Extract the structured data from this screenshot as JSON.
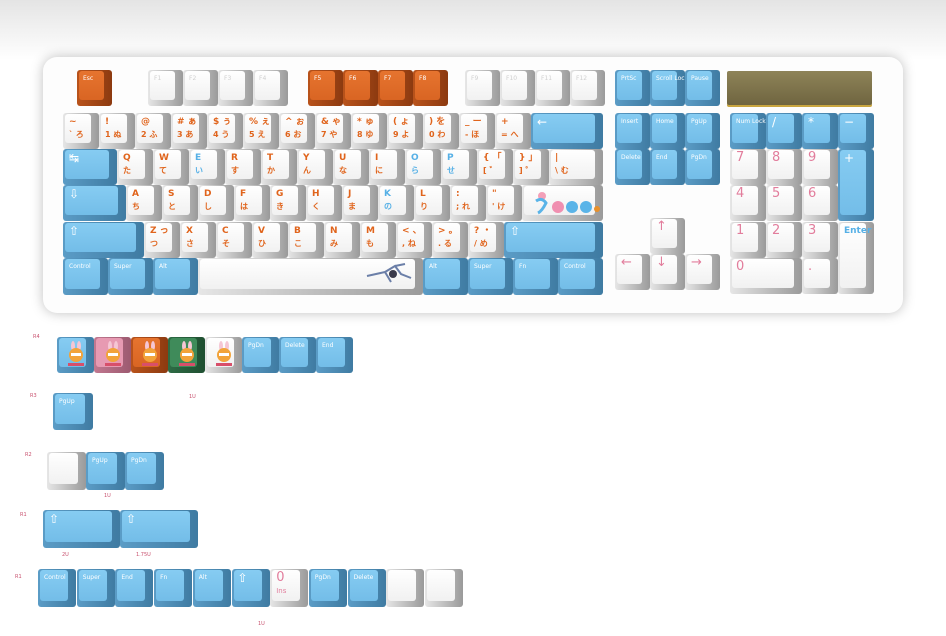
{
  "colors": {
    "blue": "#7cc4ec",
    "orange": "#dd6a28",
    "white": "#f5f5f5",
    "pink": "#e79ab2",
    "green": "#3f8b5a",
    "legend_orange": "#e0641c",
    "legend_blue": "#56b0e6",
    "legend_pink": "#e27d9c",
    "led_panel": "#857a4f"
  },
  "keyboard": {
    "rows": [
      {
        "keys": [
          {
            "t": "Esc",
            "c": "orange",
            "lc": "white"
          },
          {
            "t": "F1",
            "c": "white",
            "lc": "white2"
          },
          {
            "t": "F2",
            "c": "white",
            "lc": "white2"
          },
          {
            "t": "F3",
            "c": "white",
            "lc": "white2"
          },
          {
            "t": "F4",
            "c": "white",
            "lc": "white2"
          },
          {
            "t": "F5",
            "c": "orange",
            "lc": "white"
          },
          {
            "t": "F6",
            "c": "orange",
            "lc": "white"
          },
          {
            "t": "F7",
            "c": "orange",
            "lc": "white"
          },
          {
            "t": "F8",
            "c": "orange",
            "lc": "white"
          },
          {
            "t": "F9",
            "c": "white",
            "lc": "white2"
          },
          {
            "t": "F10",
            "c": "white",
            "lc": "white2"
          },
          {
            "t": "F11",
            "c": "white",
            "lc": "white2"
          },
          {
            "t": "F12",
            "c": "white",
            "lc": "white2"
          }
        ]
      },
      {
        "keys": [
          {
            "t": "~",
            "b": "` ろ",
            "c": "white",
            "lc": "orange"
          },
          {
            "t": "!",
            "b": "1 ぬ",
            "c": "white",
            "lc": "orange"
          },
          {
            "t": "@",
            "b": "2 ふ",
            "c": "white",
            "lc": "orange"
          },
          {
            "t": "# ぁ",
            "b": "3 あ",
            "c": "white",
            "lc": "orange"
          },
          {
            "t": "$ ぅ",
            "b": "4 う",
            "c": "white",
            "lc": "orange"
          },
          {
            "t": "% ぇ",
            "b": "5 え",
            "c": "white",
            "lc": "orange"
          },
          {
            "t": "^ ぉ",
            "b": "6 お",
            "c": "white",
            "lc": "orange"
          },
          {
            "t": "& ゃ",
            "b": "7 や",
            "c": "white",
            "lc": "orange"
          },
          {
            "t": "* ゅ",
            "b": "8 ゆ",
            "c": "white",
            "lc": "orange"
          },
          {
            "t": "( ょ",
            "b": "9 よ",
            "c": "white",
            "lc": "orange"
          },
          {
            "t": ") を",
            "b": "0 わ",
            "c": "white",
            "lc": "orange"
          },
          {
            "t": "_ ー",
            "b": "- ほ",
            "c": "white",
            "lc": "orange"
          },
          {
            "t": "+",
            "b": "= へ",
            "c": "white",
            "lc": "orange"
          },
          {
            "t": "←",
            "c": "blue",
            "lc": "white3"
          }
        ]
      },
      {
        "keys": [
          {
            "t": "↹",
            "c": "blue",
            "lc": "white3"
          },
          {
            "t": "Q",
            "b": "た",
            "c": "white",
            "lc": "orange"
          },
          {
            "t": "W",
            "b": "て",
            "c": "white",
            "lc": "orange"
          },
          {
            "t": "E",
            "b": "い",
            "c": "white",
            "lc": "blue"
          },
          {
            "t": "R",
            "b": "す",
            "c": "white",
            "lc": "orange"
          },
          {
            "t": "T",
            "b": "か",
            "c": "white",
            "lc": "orange"
          },
          {
            "t": "Y",
            "b": "ん",
            "c": "white",
            "lc": "orange"
          },
          {
            "t": "U",
            "b": "な",
            "c": "white",
            "lc": "orange"
          },
          {
            "t": "I",
            "b": "に",
            "c": "white",
            "lc": "orange"
          },
          {
            "t": "O",
            "b": "ら",
            "c": "white",
            "lc": "blue"
          },
          {
            "t": "P",
            "b": "せ",
            "c": "white",
            "lc": "blue"
          },
          {
            "t": "{ 「",
            "b": "[ ゛",
            "c": "white",
            "lc": "orange"
          },
          {
            "t": "} 」",
            "b": "] ゜",
            "c": "white",
            "lc": "orange"
          },
          {
            "t": "|",
            "b": "\\ む",
            "c": "white",
            "lc": "orange"
          }
        ]
      },
      {
        "keys": [
          {
            "t": "⇩",
            "c": "blue",
            "lc": "white3"
          },
          {
            "t": "A",
            "b": "ち",
            "c": "white",
            "lc": "orange"
          },
          {
            "t": "S",
            "b": "と",
            "c": "white",
            "lc": "orange"
          },
          {
            "t": "D",
            "b": "し",
            "c": "white",
            "lc": "orange"
          },
          {
            "t": "F",
            "b": "は",
            "c": "white",
            "lc": "orange"
          },
          {
            "t": "G",
            "b": "き",
            "c": "white",
            "lc": "orange"
          },
          {
            "t": "H",
            "b": "く",
            "c": "white",
            "lc": "orange"
          },
          {
            "t": "J",
            "b": "ま",
            "c": "white",
            "lc": "orange"
          },
          {
            "t": "K",
            "b": "の",
            "c": "white",
            "lc": "blue"
          },
          {
            "t": "L",
            "b": "り",
            "c": "white",
            "lc": "orange"
          },
          {
            "t": ":",
            "b": "; れ",
            "c": "white",
            "lc": "orange"
          },
          {
            "t": "\"",
            "b": "' け",
            "c": "white",
            "lc": "orange"
          },
          {
            "t": "",
            "c": "white",
            "lc": "orange",
            "art": "logo"
          }
        ]
      },
      {
        "keys": [
          {
            "t": "⇧",
            "c": "blue",
            "lc": "white3"
          },
          {
            "t": "Z っ",
            "b": "つ",
            "c": "white",
            "lc": "orange"
          },
          {
            "t": "X",
            "b": "さ",
            "c": "white",
            "lc": "orange"
          },
          {
            "t": "C",
            "b": "そ",
            "c": "white",
            "lc": "orange"
          },
          {
            "t": "V",
            "b": "ひ",
            "c": "white",
            "lc": "orange"
          },
          {
            "t": "B",
            "b": "こ",
            "c": "white",
            "lc": "orange"
          },
          {
            "t": "N",
            "b": "み",
            "c": "white",
            "lc": "orange"
          },
          {
            "t": "M",
            "b": "も",
            "c": "white",
            "lc": "orange"
          },
          {
            "t": "< 、",
            "b": ", ね",
            "c": "white",
            "lc": "orange"
          },
          {
            "t": "> 。",
            "b": ". る",
            "c": "white",
            "lc": "orange"
          },
          {
            "t": "? ・",
            "b": "/ め",
            "c": "white",
            "lc": "orange"
          },
          {
            "t": "⇧",
            "c": "blue",
            "lc": "white3"
          }
        ]
      },
      {
        "keys": [
          {
            "t": "Control",
            "c": "blue",
            "lc": "white"
          },
          {
            "t": "Super",
            "c": "blue",
            "lc": "white"
          },
          {
            "t": "Alt",
            "c": "blue",
            "lc": "white"
          },
          {
            "t": "",
            "c": "white",
            "lc": "orange",
            "art": "space"
          },
          {
            "t": "Alt",
            "c": "blue",
            "lc": "white"
          },
          {
            "t": "Super",
            "c": "blue",
            "lc": "white"
          },
          {
            "t": "Fn",
            "c": "blue",
            "lc": "white"
          },
          {
            "t": "Control",
            "c": "blue",
            "lc": "white"
          }
        ]
      }
    ],
    "system": [
      {
        "t": "PrtSc",
        "c": "blue",
        "lc": "white"
      },
      {
        "t": "Scroll Lock",
        "c": "blue",
        "lc": "white"
      },
      {
        "t": "Pause",
        "c": "blue",
        "lc": "white"
      }
    ],
    "nav": [
      {
        "t": "Insert",
        "c": "blue",
        "lc": "white"
      },
      {
        "t": "Home",
        "c": "blue",
        "lc": "white"
      },
      {
        "t": "PgUp",
        "c": "blue",
        "lc": "white"
      },
      {
        "t": "Delete",
        "c": "blue",
        "lc": "white"
      },
      {
        "t": "End",
        "c": "blue",
        "lc": "white"
      },
      {
        "t": "PgDn",
        "c": "blue",
        "lc": "white"
      }
    ],
    "arrows": [
      {
        "t": "↑",
        "c": "white",
        "lc": "pink"
      },
      {
        "t": "←",
        "c": "white",
        "lc": "pink"
      },
      {
        "t": "↓",
        "c": "white",
        "lc": "pink"
      },
      {
        "t": "→",
        "c": "white",
        "lc": "pink"
      }
    ],
    "numpad": [
      {
        "t": "Num Lock",
        "c": "blue",
        "lc": "white"
      },
      {
        "t": "/",
        "c": "blue",
        "lc": "white3"
      },
      {
        "t": "*",
        "c": "blue",
        "lc": "white3"
      },
      {
        "t": "−",
        "c": "blue",
        "lc": "white3"
      },
      {
        "t": "7",
        "c": "white",
        "lc": "pink"
      },
      {
        "t": "8",
        "c": "white",
        "lc": "pink"
      },
      {
        "t": "9",
        "c": "white",
        "lc": "pink"
      },
      {
        "t": "+",
        "c": "blue",
        "lc": "white3"
      },
      {
        "t": "4",
        "c": "white",
        "lc": "pink"
      },
      {
        "t": "5",
        "c": "white",
        "lc": "pink"
      },
      {
        "t": "6",
        "c": "white",
        "lc": "pink"
      },
      {
        "t": "1",
        "c": "white",
        "lc": "pink"
      },
      {
        "t": "2",
        "c": "white",
        "lc": "pink"
      },
      {
        "t": "3",
        "c": "white",
        "lc": "pink"
      },
      {
        "t": "Enter",
        "c": "white",
        "lc": "blue2"
      },
      {
        "t": "0",
        "c": "white",
        "lc": "pink"
      },
      {
        "t": ".",
        "c": "white",
        "lc": "pink"
      }
    ]
  },
  "extras": {
    "labels": [
      "R4",
      "R3",
      "1U",
      "R2",
      "1U",
      "R1",
      "2U",
      "1.75U",
      "R1",
      "1U"
    ],
    "r4": [
      {
        "t": "",
        "c": "blue",
        "art": "badge"
      },
      {
        "t": "",
        "c": "pink",
        "art": "badge"
      },
      {
        "t": "",
        "c": "orange",
        "art": "badge"
      },
      {
        "t": "",
        "c": "green",
        "art": "badge"
      },
      {
        "t": "",
        "c": "white",
        "art": "badge"
      },
      {
        "t": "PgDn",
        "c": "blue",
        "lc": "white"
      },
      {
        "t": "Delete",
        "c": "blue",
        "lc": "white"
      },
      {
        "t": "End",
        "c": "blue",
        "lc": "white"
      }
    ],
    "r3": [
      {
        "t": "PgUp",
        "c": "blue",
        "lc": "white"
      }
    ],
    "r2": [
      {
        "t": "",
        "c": "white",
        "lc": "white"
      },
      {
        "t": "PgUp",
        "c": "blue",
        "lc": "white"
      },
      {
        "t": "PgDn",
        "c": "blue",
        "lc": "white"
      }
    ],
    "r1a": [
      {
        "t": "⇧",
        "c": "blue",
        "lc": "white3"
      },
      {
        "t": "⇧",
        "c": "blue",
        "lc": "white3"
      }
    ],
    "r1b": [
      {
        "t": "Control",
        "c": "blue",
        "lc": "white"
      },
      {
        "t": "Super",
        "c": "blue",
        "lc": "white"
      },
      {
        "t": "End",
        "c": "blue",
        "lc": "white"
      },
      {
        "t": "Fn",
        "c": "blue",
        "lc": "white"
      },
      {
        "t": "Alt",
        "c": "blue",
        "lc": "white"
      },
      {
        "t": "⇧",
        "c": "blue",
        "lc": "white3"
      },
      {
        "t": "0",
        "b": "Ins",
        "c": "white",
        "lc": "pink"
      },
      {
        "t": "PgDn",
        "c": "blue",
        "lc": "white"
      },
      {
        "t": "Delete",
        "c": "blue",
        "lc": "white"
      },
      {
        "t": "",
        "c": "white",
        "lc": "white"
      },
      {
        "t": "",
        "c": "white",
        "lc": "white"
      }
    ]
  }
}
